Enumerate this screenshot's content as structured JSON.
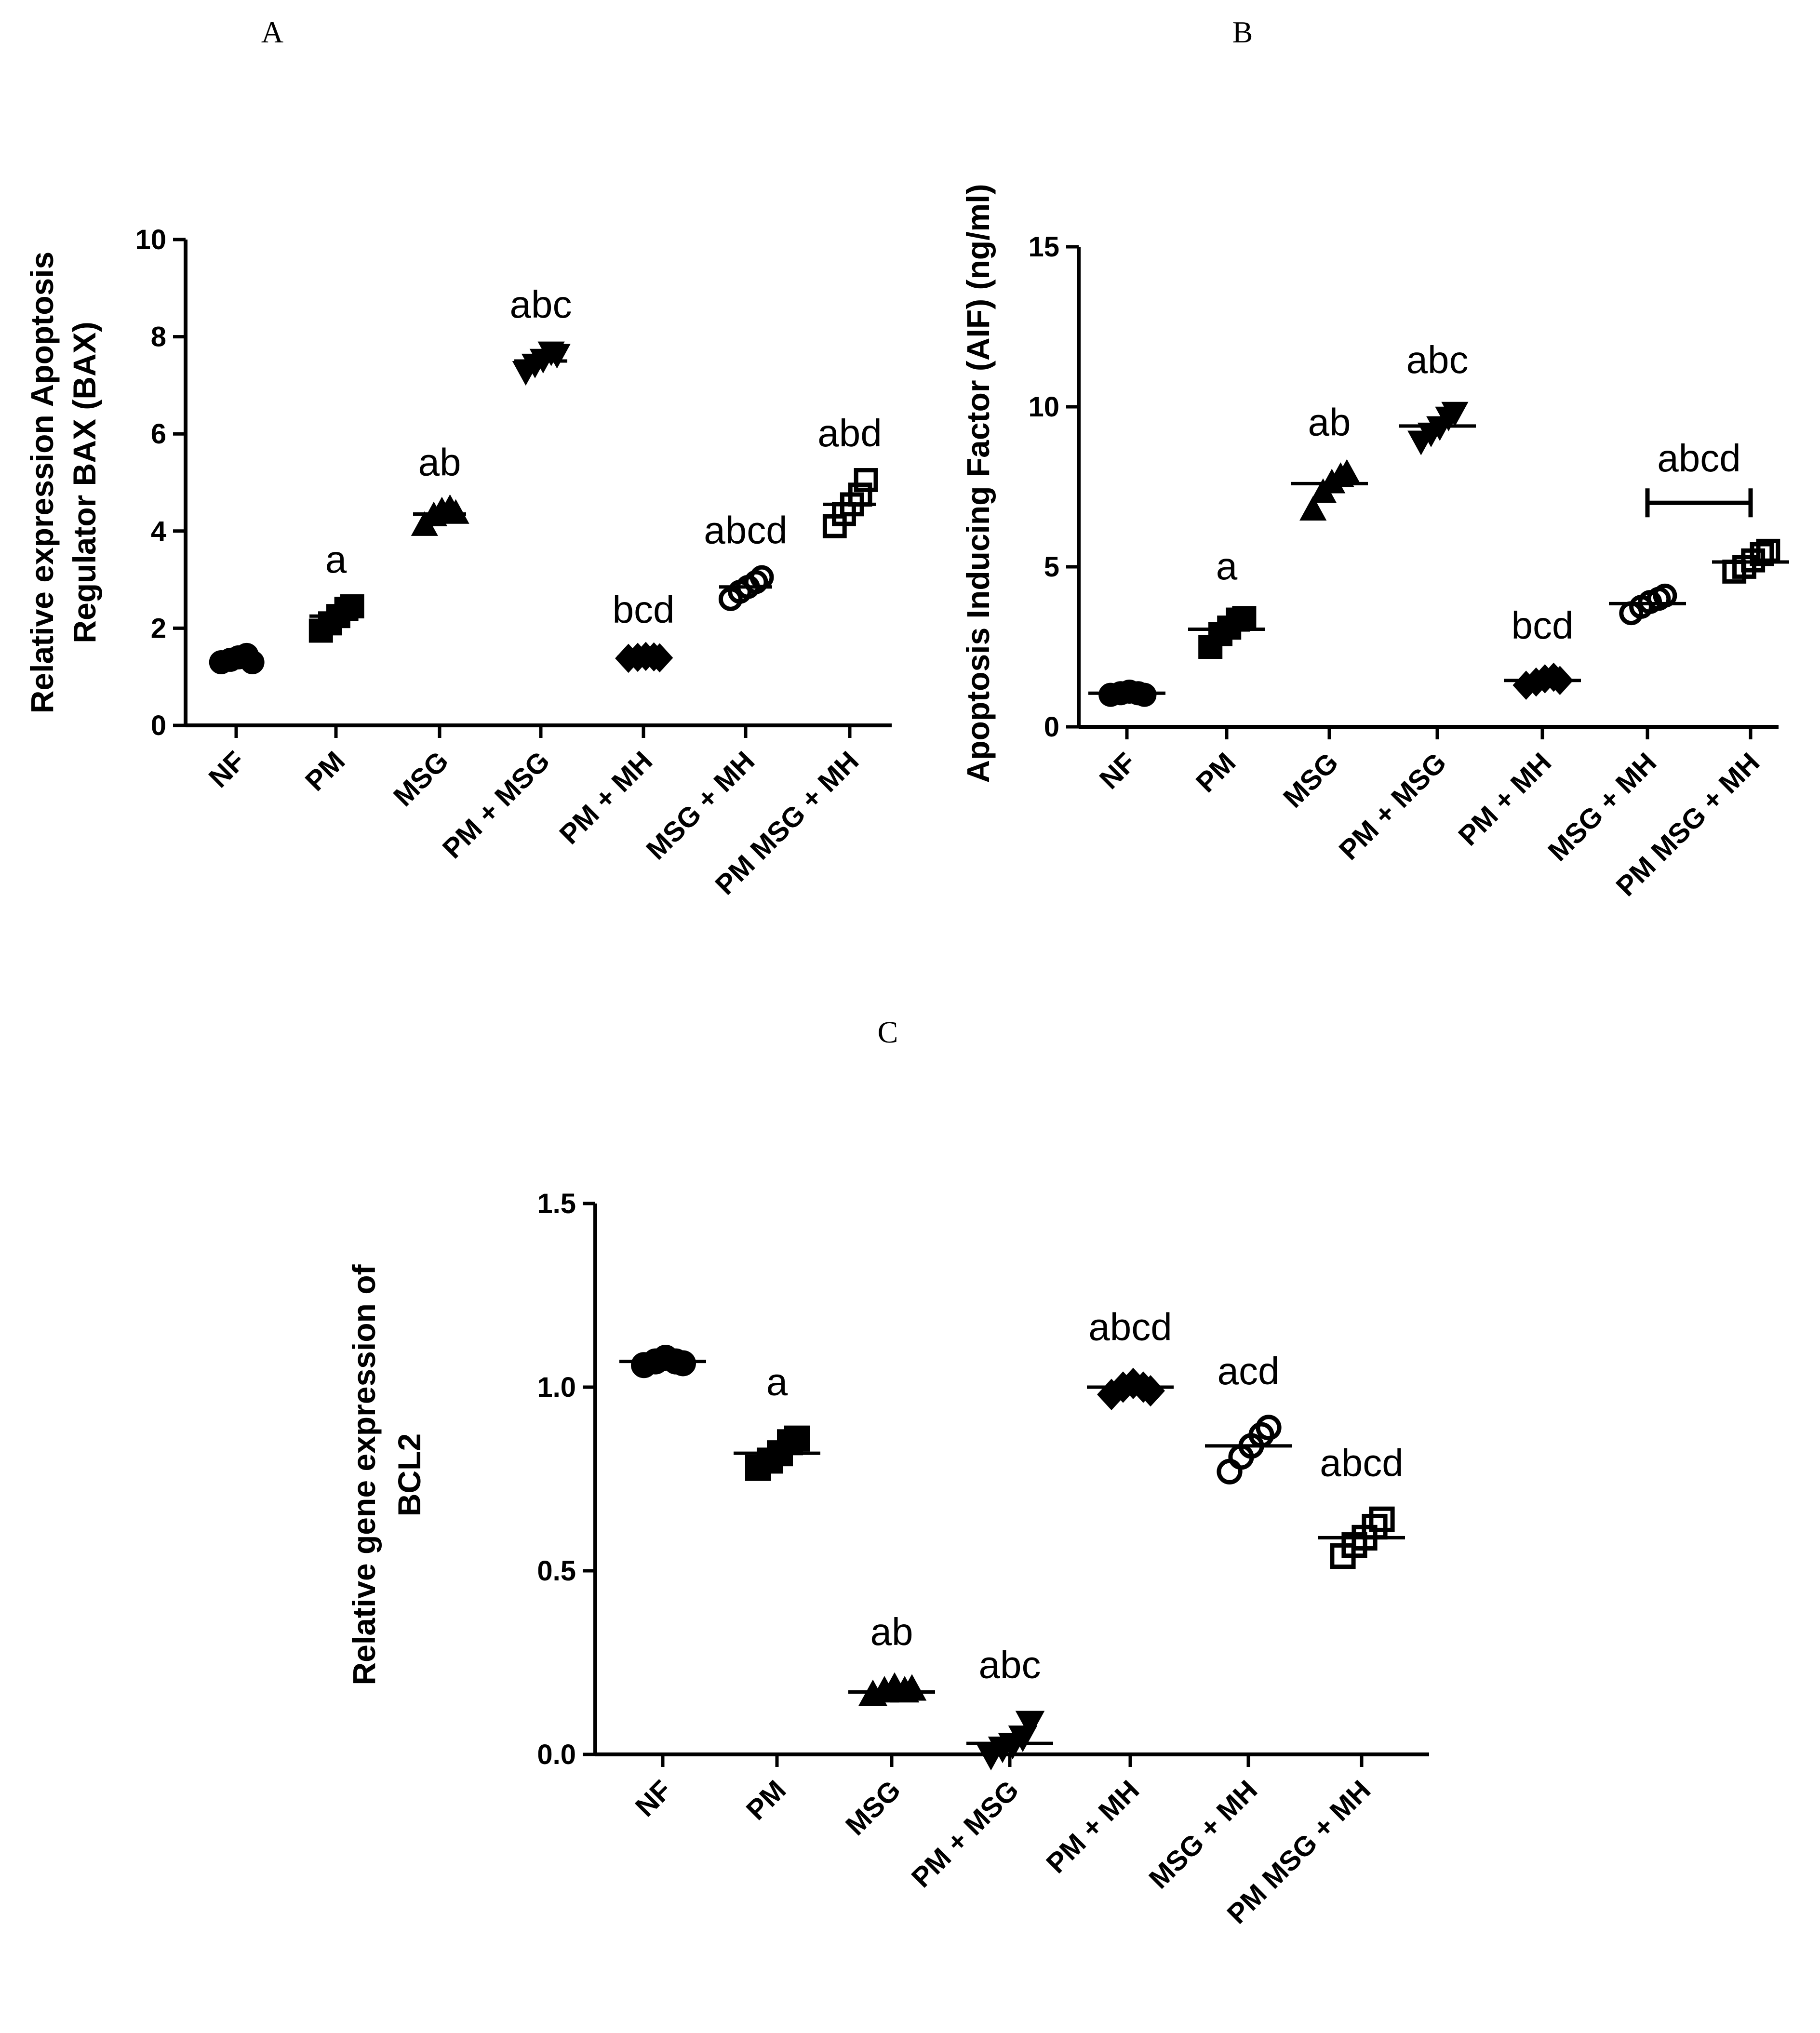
{
  "chart_data": [
    {
      "panel": "A",
      "type": "scatter",
      "ylabel": [
        "Relative expression Apoptosis",
        "Regulator BAX (BAX)"
      ],
      "xlabel": "",
      "ylim": [
        0,
        10
      ],
      "yticks": [
        "0",
        "2",
        "4",
        "6",
        "8",
        "10"
      ],
      "categories": [
        "NF",
        "PM",
        "MSG",
        "PM + MSG",
        "PM + MH",
        "MSG + MH",
        "PM MSG + MH"
      ],
      "markers": [
        "circle",
        "square",
        "triangle-up",
        "triangle-down",
        "diamond",
        "circle-open",
        "square-open"
      ],
      "groups": [
        {
          "name": "NF",
          "mean": 1.35,
          "points": [
            1.3,
            1.35,
            1.4,
            1.45,
            1.3
          ],
          "label": ""
        },
        {
          "name": "PM",
          "mean": 2.25,
          "points": [
            1.95,
            2.1,
            2.25,
            2.4,
            2.45
          ],
          "label": "a"
        },
        {
          "name": "MSG",
          "mean": 4.35,
          "points": [
            4.1,
            4.3,
            4.4,
            4.45,
            4.35
          ],
          "label": "ab"
        },
        {
          "name": "PM + MSG",
          "mean": 7.5,
          "points": [
            7.3,
            7.45,
            7.55,
            7.7,
            7.65
          ],
          "label": "abc"
        },
        {
          "name": "PM + MH",
          "mean": 1.4,
          "points": [
            1.38,
            1.4,
            1.42,
            1.41,
            1.39
          ],
          "label": "bcd"
        },
        {
          "name": "MSG + MH",
          "mean": 2.85,
          "points": [
            2.6,
            2.75,
            2.85,
            2.95,
            3.05
          ],
          "label": "abcd"
        },
        {
          "name": "PM MSG + MH",
          "mean": 4.55,
          "points": [
            4.1,
            4.35,
            4.55,
            4.75,
            5.05
          ],
          "label": "abd"
        }
      ]
    },
    {
      "panel": "B",
      "type": "scatter",
      "ylabel": [
        "Apoptosis Inducing Factor (AIF) (ng/ml)"
      ],
      "xlabel": "",
      "ylim": [
        0,
        15
      ],
      "yticks": [
        "0",
        "5",
        "10",
        "15"
      ],
      "categories": [
        "NF",
        "PM",
        "MSG",
        "PM + MSG",
        "PM + MH",
        "MSG + MH",
        "PM MSG + MH"
      ],
      "markers": [
        "circle",
        "square",
        "triangle-up",
        "triangle-down",
        "diamond",
        "circle-open",
        "square-open"
      ],
      "groups": [
        {
          "name": "NF",
          "mean": 1.05,
          "points": [
            1.0,
            1.05,
            1.1,
            1.05,
            1.0
          ],
          "label": ""
        },
        {
          "name": "PM",
          "mean": 3.05,
          "points": [
            2.5,
            2.9,
            3.1,
            3.35,
            3.4
          ],
          "label": "a"
        },
        {
          "name": "MSG",
          "mean": 7.6,
          "points": [
            6.75,
            7.3,
            7.6,
            7.8,
            7.9
          ],
          "label": "ab"
        },
        {
          "name": "PM + MSG",
          "mean": 9.4,
          "points": [
            8.95,
            9.2,
            9.4,
            9.7,
            9.85
          ],
          "label": "abc"
        },
        {
          "name": "PM + MH",
          "mean": 1.45,
          "points": [
            1.3,
            1.4,
            1.5,
            1.55,
            1.45
          ],
          "label": "bcd"
        },
        {
          "name": "MSG + MH",
          "mean": 3.85,
          "points": [
            3.55,
            3.75,
            3.9,
            4.0,
            4.1
          ],
          "label": ""
        },
        {
          "name": "PM MSG + MH",
          "mean": 5.15,
          "points": [
            4.85,
            5.0,
            5.2,
            5.4,
            5.5
          ],
          "label": ""
        }
      ],
      "bracket": {
        "from": "MSG + MH",
        "to": "PM MSG + MH",
        "value": 7.0,
        "label": "abcd"
      }
    },
    {
      "panel": "C",
      "type": "scatter",
      "ylabel": [
        "Relative gene expression of",
        "BCL2"
      ],
      "xlabel": "",
      "ylim": [
        0,
        1.5
      ],
      "yticks": [
        "0.0",
        "0.5",
        "1.0",
        "1.5"
      ],
      "categories": [
        "NF",
        "PM",
        "MSG",
        "PM + MSG",
        "PM + MH",
        "MSG + MH",
        "PM MSG + MH"
      ],
      "markers": [
        "circle",
        "square",
        "triangle-up",
        "triangle-down",
        "diamond",
        "circle-open",
        "square-open"
      ],
      "groups": [
        {
          "name": "NF",
          "mean": 1.07,
          "points": [
            1.06,
            1.07,
            1.08,
            1.07,
            1.065
          ],
          "label": ""
        },
        {
          "name": "PM",
          "mean": 0.82,
          "points": [
            0.78,
            0.8,
            0.82,
            0.85,
            0.86
          ],
          "label": "a"
        },
        {
          "name": "MSG",
          "mean": 0.17,
          "points": [
            0.16,
            0.17,
            0.18,
            0.17,
            0.175
          ],
          "label": "ab"
        },
        {
          "name": "PM + MSG",
          "mean": 0.03,
          "points": [
            0.0,
            0.02,
            0.03,
            0.05,
            0.09
          ],
          "label": "abc"
        },
        {
          "name": "PM + MH",
          "mean": 1.0,
          "points": [
            0.98,
            1.0,
            1.01,
            1.0,
            0.99
          ],
          "label": "abcd"
        },
        {
          "name": "MSG + MH",
          "mean": 0.84,
          "points": [
            0.77,
            0.81,
            0.84,
            0.87,
            0.89
          ],
          "label": "acd"
        },
        {
          "name": "PM MSG + MH",
          "mean": 0.59,
          "points": [
            0.54,
            0.57,
            0.59,
            0.62,
            0.64
          ],
          "label": "abcd"
        }
      ]
    }
  ]
}
